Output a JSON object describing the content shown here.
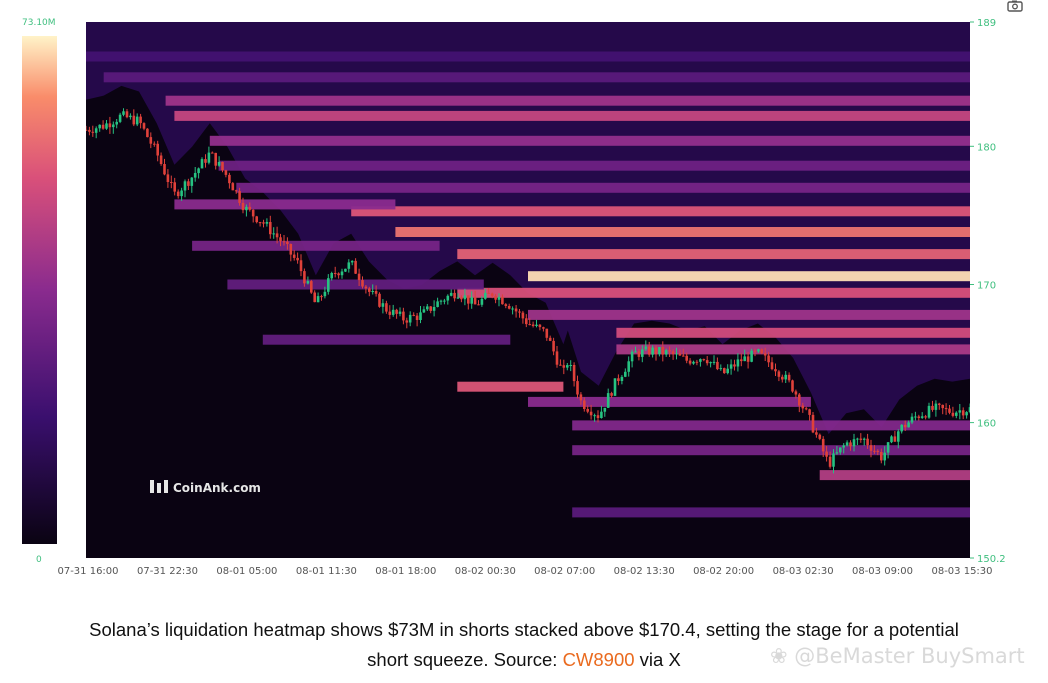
{
  "chart_data": {
    "type": "heatmap",
    "title": "",
    "watermark_logo": "CoinAnk.com",
    "color_scale": {
      "max_label": "73.10M",
      "min_label": "0",
      "colors": [
        "#0a0312",
        "#3a0f6e",
        "#8a2b8e",
        "#d9507a",
        "#f98c6a",
        "#fff3c8"
      ]
    },
    "y_axis": {
      "ticks": [
        "189",
        "180",
        "170",
        "160",
        "150.2"
      ],
      "tick_values": [
        189,
        180,
        170,
        160,
        150.2
      ],
      "range": [
        150.2,
        189
      ],
      "side": "right"
    },
    "x_axis": {
      "ticks": [
        "07-31 16:00",
        "07-31 22:30",
        "08-01 05:00",
        "08-01 11:30",
        "08-01 18:00",
        "08-02 00:30",
        "08-02 07:00",
        "08-02 13:30",
        "08-02 20:00",
        "08-03 02:30",
        "08-03 09:00",
        "08-03 15:30"
      ]
    },
    "price_path": {
      "t": [
        0,
        0.02,
        0.04,
        0.06,
        0.08,
        0.1,
        0.12,
        0.14,
        0.16,
        0.18,
        0.2,
        0.22,
        0.24,
        0.26,
        0.28,
        0.3,
        0.32,
        0.34,
        0.36,
        0.38,
        0.4,
        0.42,
        0.44,
        0.46,
        0.48,
        0.5,
        0.52,
        0.54,
        0.545,
        0.56,
        0.58,
        0.6,
        0.62,
        0.64,
        0.66,
        0.68,
        0.7,
        0.72,
        0.74,
        0.76,
        0.78,
        0.8,
        0.82,
        0.84,
        0.86,
        0.88,
        0.9,
        0.92,
        0.94,
        0.96,
        0.98,
        1
      ],
      "price": [
        181.2,
        181.5,
        182.2,
        181.8,
        179.5,
        176.5,
        177.8,
        179.5,
        177.8,
        175.5,
        174.5,
        173.2,
        171.5,
        168.5,
        170.8,
        171.5,
        169.5,
        168.2,
        167.5,
        167.8,
        168.8,
        169.5,
        168.5,
        169.4,
        168.5,
        167.2,
        166.5,
        163.5,
        164.5,
        161.5,
        160.5,
        163.0,
        165.0,
        165.2,
        165.0,
        164.5,
        164.8,
        163.5,
        164.5,
        165.0,
        164.0,
        162.5,
        160.0,
        157.0,
        158.5,
        158.8,
        157.5,
        159.5,
        160.5,
        161.0,
        160.8,
        161.0
      ]
    },
    "liquidation_bands": [
      {
        "price": 186.5,
        "value": 0.22,
        "from": 0.0,
        "to": 1
      },
      {
        "price": 185.0,
        "value": 0.28,
        "from": 0.02,
        "to": 1
      },
      {
        "price": 183.3,
        "value": 0.45,
        "from": 0.09,
        "to": 1
      },
      {
        "price": 182.2,
        "value": 0.55,
        "from": 0.1,
        "to": 1
      },
      {
        "price": 180.4,
        "value": 0.42,
        "from": 0.14,
        "to": 1
      },
      {
        "price": 178.6,
        "value": 0.33,
        "from": 0.15,
        "to": 1
      },
      {
        "price": 177.0,
        "value": 0.35,
        "from": 0.17,
        "to": 1
      },
      {
        "price": 175.3,
        "value": 0.62,
        "from": 0.3,
        "to": 1
      },
      {
        "price": 173.8,
        "value": 0.72,
        "from": 0.35,
        "to": 1
      },
      {
        "price": 172.2,
        "value": 0.66,
        "from": 0.42,
        "to": 1
      },
      {
        "price": 170.6,
        "value": 0.96,
        "from": 0.5,
        "to": 1
      },
      {
        "price": 169.4,
        "value": 0.6,
        "from": 0.42,
        "to": 1
      },
      {
        "price": 167.8,
        "value": 0.45,
        "from": 0.5,
        "to": 1
      },
      {
        "price": 166.5,
        "value": 0.58,
        "from": 0.6,
        "to": 1
      },
      {
        "price": 165.3,
        "value": 0.48,
        "from": 0.6,
        "to": 1
      },
      {
        "price": 162.6,
        "value": 0.62,
        "from": 0.42,
        "to": 0.54
      },
      {
        "price": 161.5,
        "value": 0.4,
        "from": 0.5,
        "to": 0.82
      },
      {
        "price": 159.8,
        "value": 0.38,
        "from": 0.55,
        "to": 1
      },
      {
        "price": 158.0,
        "value": 0.35,
        "from": 0.55,
        "to": 1
      },
      {
        "price": 156.2,
        "value": 0.5,
        "from": 0.83,
        "to": 1
      },
      {
        "price": 153.5,
        "value": 0.28,
        "from": 0.55,
        "to": 1
      },
      {
        "price": 175.8,
        "value": 0.4,
        "from": 0.1,
        "to": 0.35
      },
      {
        "price": 172.8,
        "value": 0.35,
        "from": 0.12,
        "to": 0.4
      },
      {
        "price": 170.0,
        "value": 0.3,
        "from": 0.16,
        "to": 0.45
      },
      {
        "price": 166.0,
        "value": 0.3,
        "from": 0.2,
        "to": 0.48
      }
    ]
  },
  "caption": {
    "line1": "Solana’s liquidation heatmap shows $73M in shorts stacked above $170.4, setting the stage for a potential",
    "line2_pre": "short squeeze. Source: ",
    "source_link": "CW8900",
    "line2_post": " via X"
  },
  "watermark": "❀ @BeMaster BuySmart",
  "icons": {
    "toolbar": "camera-icon"
  }
}
